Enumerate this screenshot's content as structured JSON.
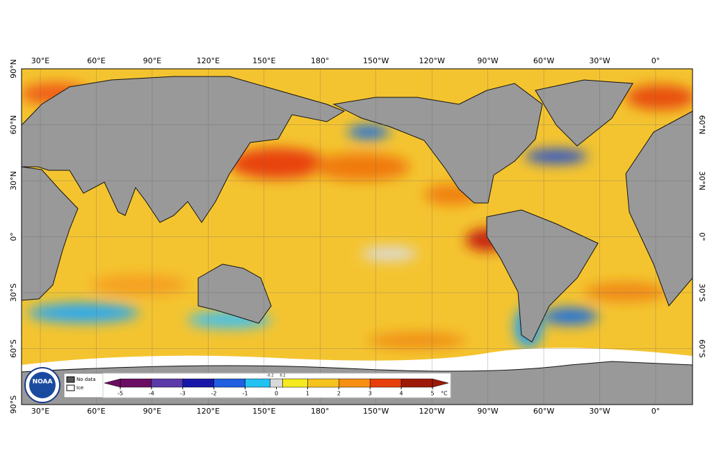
{
  "map": {
    "lon_labels": [
      "30°E",
      "60°E",
      "90°E",
      "120°E",
      "150°E",
      "180°",
      "150°W",
      "120°W",
      "90°W",
      "60°W",
      "30°W",
      "0°"
    ],
    "lat_labels": [
      "90°N",
      "60°N",
      "30°N",
      "0°",
      "30°S",
      "60°S",
      "90°S"
    ],
    "logo": "NOAA",
    "legend": {
      "no_data": "No data",
      "ice": "Ice"
    },
    "colorbar": {
      "edges": [
        -5,
        -4,
        -3,
        -2,
        -1,
        -0.2,
        0.2,
        1,
        2,
        3,
        4,
        5
      ],
      "zero": 0,
      "colors": [
        "#6b0d62",
        "#5a3aa8",
        "#1616a8",
        "#1f5fe0",
        "#22c2f2",
        "#d9d9d9",
        "#f5ea1e",
        "#f6c21e",
        "#f68f12",
        "#e63f0c",
        "#9e1a08"
      ],
      "unit": "°C"
    }
  }
}
